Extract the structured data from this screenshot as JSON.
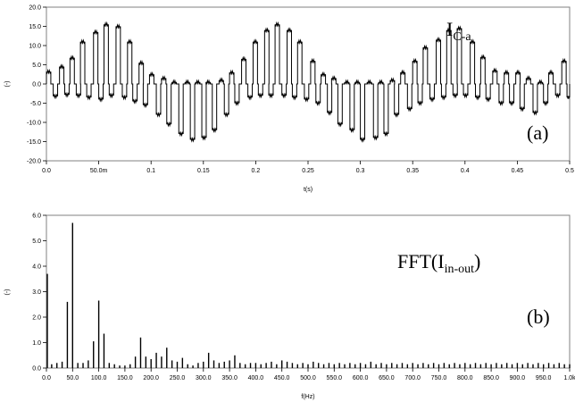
{
  "chart_data": [
    {
      "type": "line",
      "panel_label": "(a)",
      "annotation": {
        "main": "I",
        "sub": "C-a"
      },
      "xlabel": "t(s)",
      "ylabel": "(-)",
      "xlim": [
        0,
        0.5
      ],
      "ylim": [
        -20,
        20
      ],
      "x_ticks": [
        0,
        0.05,
        0.1,
        0.15,
        0.2,
        0.25,
        0.3,
        0.35,
        0.4,
        0.45,
        0.5
      ],
      "x_tick_labels": [
        "0.0",
        "50.0m",
        "0.1",
        "0.15",
        "0.2",
        "0.25",
        "0.3",
        "0.35",
        "0.4",
        "0.45",
        "0.5"
      ],
      "y_ticks": [
        -20,
        -15,
        -10,
        -5,
        0,
        5,
        10,
        15,
        20
      ],
      "y_tick_labels": [
        "-20.0",
        "-15.0",
        "-10.0",
        "-5.0",
        "0.0",
        "5.0",
        "10.0",
        "15.0",
        "20.0"
      ],
      "grid": false,
      "series": [
        {
          "x": [
            0.0,
            0.0065,
            0.0125,
            0.0175,
            0.0225,
            0.0285,
            0.0325,
            0.0385,
            0.045,
            0.05,
            0.055,
            0.06,
            0.0665,
            0.0725,
            0.0775,
            0.0825,
            0.0885,
            0.0925,
            0.0985,
            0.105,
            0.11,
            0.115,
            0.12,
            0.1265,
            0.1325,
            0.1375,
            0.1425,
            0.1485,
            0.1525,
            0.1585,
            0.165,
            0.17,
            0.175,
            0.18,
            0.1865,
            0.1925,
            0.1975,
            0.2025,
            0.2085,
            0.2125,
            0.2185,
            0.225,
            0.23,
            0.235,
            0.24,
            0.2465,
            0.2525,
            0.2575,
            0.2625,
            0.2685,
            0.2725,
            0.2785,
            0.285,
            0.29,
            0.295,
            0.3,
            0.3065,
            0.3125,
            0.3175,
            0.3225,
            0.3285,
            0.3325,
            0.3385,
            0.345,
            0.35,
            0.355,
            0.36,
            0.3665,
            0.3725,
            0.3775,
            0.3825,
            0.3885,
            0.3925,
            0.3985,
            0.405,
            0.41,
            0.415,
            0.42,
            0.4265,
            0.4325,
            0.4375,
            0.4425,
            0.4485,
            0.4525,
            0.4585,
            0.465,
            0.47,
            0.475,
            0.48,
            0.4865,
            0.4925,
            0.4975
          ],
          "y": [
            3.2,
            -3.2,
            4.5,
            -2.8,
            6.8,
            -3.0,
            11.0,
            -3.5,
            13.5,
            -4.0,
            15.5,
            -3.0,
            15.0,
            -3.5,
            11.0,
            -4.5,
            5.5,
            -5.5,
            2.5,
            -8.0,
            1.5,
            -10.5,
            0.5,
            -13.0,
            0.5,
            -14.5,
            0.5,
            -14.0,
            0.5,
            -12.0,
            1.0,
            -8.0,
            3.0,
            -5.0,
            6.5,
            -3.5,
            11.0,
            -3.0,
            14.0,
            -3.0,
            15.5,
            -3.0,
            14.0,
            -3.5,
            11.0,
            -4.0,
            6.0,
            -5.0,
            2.5,
            -7.5,
            1.5,
            -10.5,
            0.5,
            -12.0,
            0.5,
            -14.5,
            0.5,
            -14.0,
            0.5,
            -13.0,
            1.0,
            -8.0,
            3.0,
            -6.5,
            6.0,
            -5.0,
            9.5,
            -4.0,
            11.5,
            -3.5,
            14.0,
            -3.0,
            14.5,
            -3.0,
            11.0,
            -3.5,
            7.0,
            -4.0,
            3.5,
            -5.0,
            3.0,
            -5.0,
            3.0,
            -6.5,
            1.5,
            -7.5,
            0.5,
            -5.0,
            3.0,
            -3.0,
            6.0,
            -3.5
          ]
        }
      ]
    },
    {
      "type": "bar",
      "panel_label": "(b)",
      "annotation": {
        "main": "FFT(I",
        "sub": "in-out",
        "end": ")"
      },
      "xlabel": "f(Hz)",
      "ylabel": "(-)",
      "xlim": [
        0,
        1000
      ],
      "ylim": [
        0,
        6
      ],
      "x_ticks": [
        0,
        50,
        100,
        150,
        200,
        250,
        300,
        350,
        400,
        450,
        500,
        550,
        600,
        650,
        700,
        750,
        800,
        850,
        900,
        950,
        1000
      ],
      "x_tick_labels": [
        "0.0",
        "50.0",
        "100.0",
        "150.0",
        "200.0",
        "250.0",
        "300.0",
        "350.0",
        "400.0",
        "450.0",
        "500.0",
        "550.0",
        "600.0",
        "650.0",
        "700.0",
        "750.0",
        "800.0",
        "850.0",
        "900.0",
        "950.0",
        "1.0k"
      ],
      "y_ticks": [
        0,
        1,
        2,
        3,
        4,
        5,
        6
      ],
      "y_tick_labels": [
        "0.0",
        "1.0",
        "2.0",
        "3.0",
        "4.0",
        "5.0",
        "6.0"
      ],
      "grid": false,
      "frequencies": [
        0,
        10,
        20,
        30,
        40,
        50,
        60,
        70,
        80,
        90,
        100,
        110,
        120,
        130,
        140,
        150,
        160,
        170,
        180,
        190,
        200,
        210,
        220,
        230,
        240,
        250,
        260,
        270,
        280,
        290,
        300,
        310,
        320,
        330,
        340,
        350,
        360,
        370,
        380,
        390,
        400,
        410,
        420,
        430,
        440,
        450,
        460,
        470,
        480,
        490,
        500,
        510,
        520,
        530,
        540,
        550,
        560,
        570,
        580,
        590,
        600,
        610,
        620,
        630,
        640,
        650,
        660,
        670,
        680,
        690,
        700,
        710,
        720,
        730,
        740,
        750,
        760,
        770,
        780,
        790,
        800,
        810,
        820,
        830,
        840,
        850,
        860,
        870,
        880,
        890,
        900,
        910,
        920,
        930,
        940,
        950,
        960,
        970,
        980,
        990,
        1000
      ],
      "values": [
        3.7,
        0.15,
        0.2,
        0.25,
        2.6,
        5.7,
        0.2,
        0.2,
        0.3,
        1.05,
        2.65,
        1.35,
        0.2,
        0.15,
        0.1,
        0.1,
        0.15,
        0.45,
        1.2,
        0.45,
        0.35,
        0.6,
        0.45,
        0.8,
        0.3,
        0.25,
        0.4,
        0.15,
        0.1,
        0.2,
        0.25,
        0.6,
        0.3,
        0.2,
        0.25,
        0.3,
        0.5,
        0.2,
        0.15,
        0.2,
        0.2,
        0.15,
        0.2,
        0.25,
        0.15,
        0.3,
        0.25,
        0.2,
        0.15,
        0.2,
        0.15,
        0.25,
        0.2,
        0.15,
        0.2,
        0.15,
        0.2,
        0.15,
        0.2,
        0.15,
        0.2,
        0.15,
        0.25,
        0.15,
        0.2,
        0.15,
        0.2,
        0.15,
        0.2,
        0.15,
        0.2,
        0.15,
        0.2,
        0.15,
        0.2,
        0.15,
        0.2,
        0.15,
        0.2,
        0.15,
        0.2,
        0.15,
        0.2,
        0.15,
        0.2,
        0.15,
        0.2,
        0.15,
        0.2,
        0.15,
        0.2,
        0.15,
        0.2,
        0.15,
        0.2,
        0.15,
        0.2,
        0.15,
        0.2,
        0.15,
        0.15
      ]
    }
  ]
}
